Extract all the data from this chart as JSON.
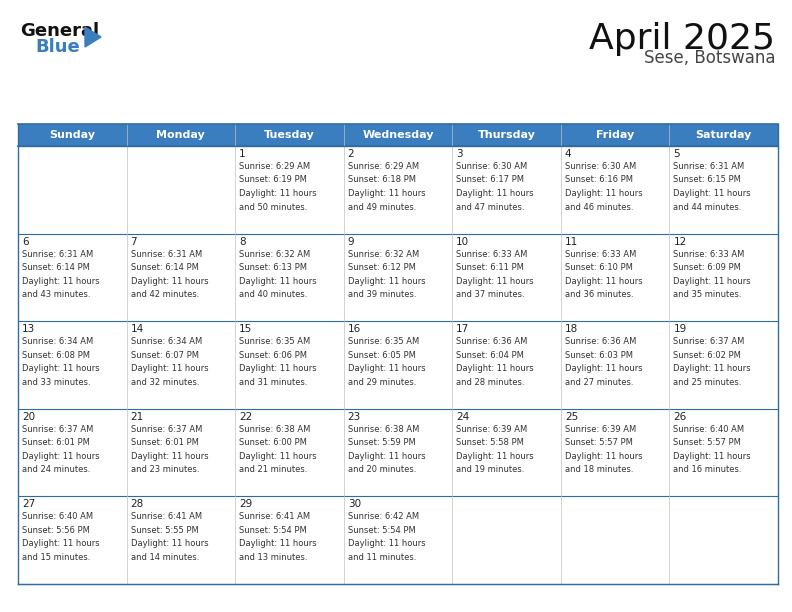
{
  "title": "April 2025",
  "subtitle": "Sese, Botswana",
  "header_color": "#3a7ebf",
  "header_text_color": "#ffffff",
  "cell_bg_color": "#ffffff",
  "border_color": "#2e6da4",
  "text_color": "#333333",
  "days_of_week": [
    "Sunday",
    "Monday",
    "Tuesday",
    "Wednesday",
    "Thursday",
    "Friday",
    "Saturday"
  ],
  "logo_general_color": "#111111",
  "logo_blue_color": "#3a7ebf",
  "logo_triangle_color": "#3a7ebf",
  "title_fontsize": 26,
  "subtitle_fontsize": 12,
  "dow_fontsize": 8,
  "day_num_fontsize": 7.5,
  "info_fontsize": 6.0,
  "calendar": [
    [
      {
        "day": "",
        "info": ""
      },
      {
        "day": "",
        "info": ""
      },
      {
        "day": "1",
        "info": "Sunrise: 6:29 AM\nSunset: 6:19 PM\nDaylight: 11 hours\nand 50 minutes."
      },
      {
        "day": "2",
        "info": "Sunrise: 6:29 AM\nSunset: 6:18 PM\nDaylight: 11 hours\nand 49 minutes."
      },
      {
        "day": "3",
        "info": "Sunrise: 6:30 AM\nSunset: 6:17 PM\nDaylight: 11 hours\nand 47 minutes."
      },
      {
        "day": "4",
        "info": "Sunrise: 6:30 AM\nSunset: 6:16 PM\nDaylight: 11 hours\nand 46 minutes."
      },
      {
        "day": "5",
        "info": "Sunrise: 6:31 AM\nSunset: 6:15 PM\nDaylight: 11 hours\nand 44 minutes."
      }
    ],
    [
      {
        "day": "6",
        "info": "Sunrise: 6:31 AM\nSunset: 6:14 PM\nDaylight: 11 hours\nand 43 minutes."
      },
      {
        "day": "7",
        "info": "Sunrise: 6:31 AM\nSunset: 6:14 PM\nDaylight: 11 hours\nand 42 minutes."
      },
      {
        "day": "8",
        "info": "Sunrise: 6:32 AM\nSunset: 6:13 PM\nDaylight: 11 hours\nand 40 minutes."
      },
      {
        "day": "9",
        "info": "Sunrise: 6:32 AM\nSunset: 6:12 PM\nDaylight: 11 hours\nand 39 minutes."
      },
      {
        "day": "10",
        "info": "Sunrise: 6:33 AM\nSunset: 6:11 PM\nDaylight: 11 hours\nand 37 minutes."
      },
      {
        "day": "11",
        "info": "Sunrise: 6:33 AM\nSunset: 6:10 PM\nDaylight: 11 hours\nand 36 minutes."
      },
      {
        "day": "12",
        "info": "Sunrise: 6:33 AM\nSunset: 6:09 PM\nDaylight: 11 hours\nand 35 minutes."
      }
    ],
    [
      {
        "day": "13",
        "info": "Sunrise: 6:34 AM\nSunset: 6:08 PM\nDaylight: 11 hours\nand 33 minutes."
      },
      {
        "day": "14",
        "info": "Sunrise: 6:34 AM\nSunset: 6:07 PM\nDaylight: 11 hours\nand 32 minutes."
      },
      {
        "day": "15",
        "info": "Sunrise: 6:35 AM\nSunset: 6:06 PM\nDaylight: 11 hours\nand 31 minutes."
      },
      {
        "day": "16",
        "info": "Sunrise: 6:35 AM\nSunset: 6:05 PM\nDaylight: 11 hours\nand 29 minutes."
      },
      {
        "day": "17",
        "info": "Sunrise: 6:36 AM\nSunset: 6:04 PM\nDaylight: 11 hours\nand 28 minutes."
      },
      {
        "day": "18",
        "info": "Sunrise: 6:36 AM\nSunset: 6:03 PM\nDaylight: 11 hours\nand 27 minutes."
      },
      {
        "day": "19",
        "info": "Sunrise: 6:37 AM\nSunset: 6:02 PM\nDaylight: 11 hours\nand 25 minutes."
      }
    ],
    [
      {
        "day": "20",
        "info": "Sunrise: 6:37 AM\nSunset: 6:01 PM\nDaylight: 11 hours\nand 24 minutes."
      },
      {
        "day": "21",
        "info": "Sunrise: 6:37 AM\nSunset: 6:01 PM\nDaylight: 11 hours\nand 23 minutes."
      },
      {
        "day": "22",
        "info": "Sunrise: 6:38 AM\nSunset: 6:00 PM\nDaylight: 11 hours\nand 21 minutes."
      },
      {
        "day": "23",
        "info": "Sunrise: 6:38 AM\nSunset: 5:59 PM\nDaylight: 11 hours\nand 20 minutes."
      },
      {
        "day": "24",
        "info": "Sunrise: 6:39 AM\nSunset: 5:58 PM\nDaylight: 11 hours\nand 19 minutes."
      },
      {
        "day": "25",
        "info": "Sunrise: 6:39 AM\nSunset: 5:57 PM\nDaylight: 11 hours\nand 18 minutes."
      },
      {
        "day": "26",
        "info": "Sunrise: 6:40 AM\nSunset: 5:57 PM\nDaylight: 11 hours\nand 16 minutes."
      }
    ],
    [
      {
        "day": "27",
        "info": "Sunrise: 6:40 AM\nSunset: 5:56 PM\nDaylight: 11 hours\nand 15 minutes."
      },
      {
        "day": "28",
        "info": "Sunrise: 6:41 AM\nSunset: 5:55 PM\nDaylight: 11 hours\nand 14 minutes."
      },
      {
        "day": "29",
        "info": "Sunrise: 6:41 AM\nSunset: 5:54 PM\nDaylight: 11 hours\nand 13 minutes."
      },
      {
        "day": "30",
        "info": "Sunrise: 6:42 AM\nSunset: 5:54 PM\nDaylight: 11 hours\nand 11 minutes."
      },
      {
        "day": "",
        "info": ""
      },
      {
        "day": "",
        "info": ""
      },
      {
        "day": "",
        "info": ""
      }
    ]
  ]
}
